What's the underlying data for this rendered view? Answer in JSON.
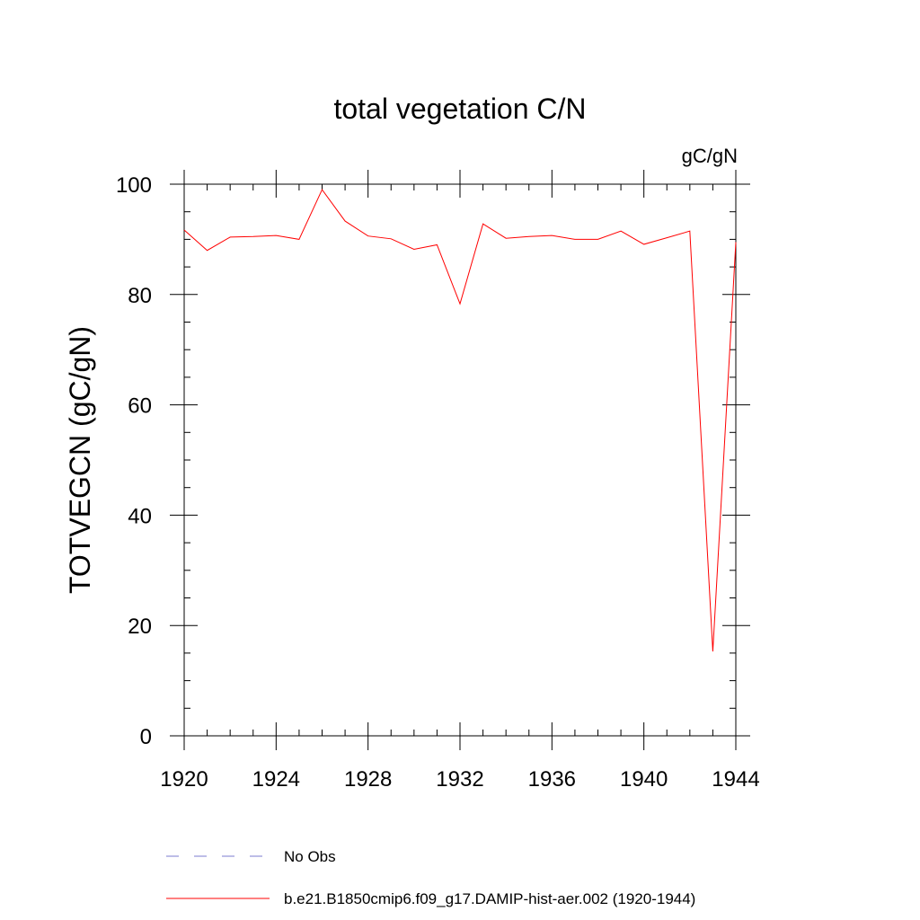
{
  "chart_data": {
    "type": "line",
    "title": "total vegetation C/N",
    "units_label": "gC/gN",
    "xlabel": "",
    "ylabel": "TOTVEGCN  (gC/gN)",
    "xlim": [
      1920,
      1944
    ],
    "ylim": [
      0,
      100
    ],
    "x_ticks": [
      1920,
      1924,
      1928,
      1932,
      1936,
      1940,
      1944
    ],
    "y_ticks": [
      0,
      20,
      40,
      60,
      80,
      100
    ],
    "x_minor_step": 1,
    "y_minor_step": 5,
    "grid": false,
    "legend_position": "bottom",
    "series": [
      {
        "name": "No Obs",
        "color": "#7b7bcf",
        "style": "dashed",
        "x": [],
        "values": []
      },
      {
        "name": "b.e21.B1850cmip6.f09_g17.DAMIP-hist-aer.002 (1920-1944)",
        "color": "#ff0000",
        "style": "solid",
        "x": [
          1920,
          1921,
          1922,
          1923,
          1924,
          1925,
          1926,
          1927,
          1928,
          1929,
          1930,
          1931,
          1932,
          1933,
          1934,
          1935,
          1936,
          1937,
          1938,
          1939,
          1940,
          1941,
          1942,
          1943,
          1944
        ],
        "values": [
          91.7,
          88.0,
          90.4,
          90.5,
          90.7,
          90.0,
          99.0,
          93.3,
          90.6,
          90.1,
          88.2,
          89.0,
          78.3,
          92.8,
          90.2,
          90.5,
          90.7,
          90.0,
          90.0,
          91.5,
          89.1,
          90.3,
          91.5,
          15.3,
          89.5
        ]
      }
    ]
  }
}
